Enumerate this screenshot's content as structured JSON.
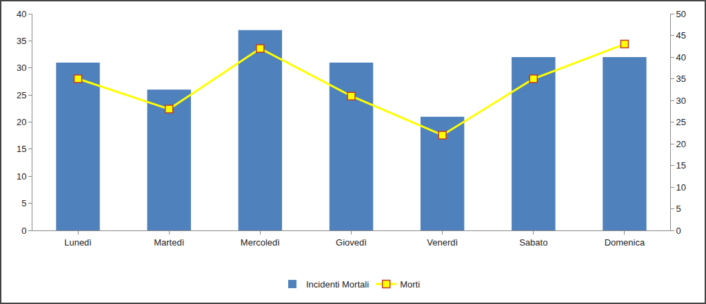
{
  "chart_data": {
    "type": "bar",
    "categories": [
      "Lunedì",
      "Martedì",
      "Mercoledì",
      "Giovedì",
      "Venerdì",
      "Sabato",
      "Domenica"
    ],
    "series": [
      {
        "name": "Incidenti Mortali",
        "type": "bar",
        "color": "#4f81bd",
        "values": [
          31,
          26,
          37,
          31,
          21,
          32,
          32
        ]
      },
      {
        "name": "Morti",
        "type": "line",
        "color": "#ffff00",
        "marker": "square",
        "axis": "y2",
        "values": [
          35,
          28,
          42,
          31,
          22,
          35,
          43
        ]
      }
    ],
    "ylim": [
      0,
      40
    ],
    "yticks": [
      0,
      5,
      10,
      15,
      20,
      25,
      30,
      35,
      40
    ],
    "y2lim": [
      0,
      50
    ],
    "y2ticks": [
      0,
      5,
      10,
      15,
      20,
      25,
      30,
      35,
      40,
      45,
      50
    ],
    "grid": false,
    "legend": "bottom"
  }
}
